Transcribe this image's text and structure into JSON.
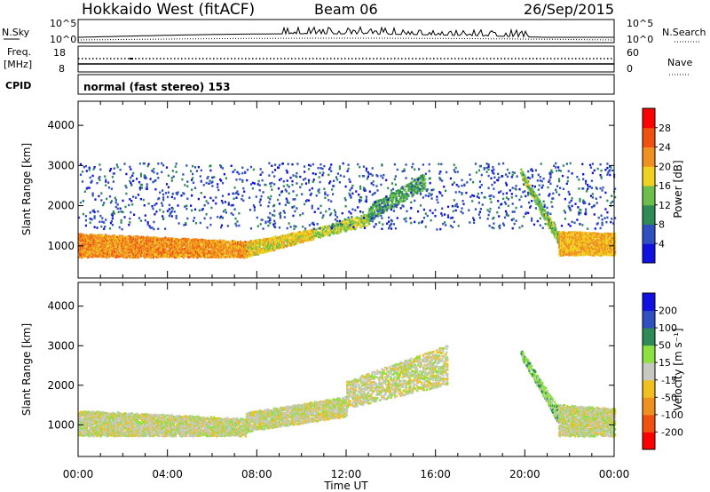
{
  "header": {
    "title": "Hokkaido West (fitACF)",
    "beam": "Beam 06",
    "date": "26/Sep/2015"
  },
  "status_panel": {
    "nsky_label": "N.Sky",
    "nsearch_label": "N.Search",
    "noise_ticks": [
      "10^5",
      "10^0"
    ],
    "freq_label_1": "Freq.",
    "freq_label_2": "[MHz]",
    "freq_ticks": [
      "18",
      "8"
    ],
    "nave_label": "Nave",
    "nave_ticks": [
      "60",
      "0"
    ],
    "cpid_label": "CPID",
    "cpid_text": "normal (fast stereo) 153"
  },
  "chart_data": [
    {
      "type": "heatmap",
      "name": "power-panel",
      "ylabel": "Slant Range [km]",
      "yticks": [
        "1000",
        "2000",
        "3000",
        "4000"
      ],
      "ylim": [
        200,
        4600
      ],
      "xlim_hours": [
        0,
        24
      ],
      "colorbar_label": "Power [dB]",
      "colorbar_ticks": [
        "4",
        "8",
        "12",
        "16",
        "20",
        "24",
        "28"
      ],
      "colorbar_colors": [
        "#1010e0",
        "#3050c0",
        "#2e8b57",
        "#6cbf4a",
        "#f0d020",
        "#f09020",
        "#f05010",
        "#ff0000"
      ],
      "colorbar_range": [
        0,
        32
      ],
      "scatter_bands": [
        {
          "t": [
            0.0,
            7.5
          ],
          "r0": [
            700,
            700
          ],
          "r1": [
            1300,
            1100
          ],
          "level": 22,
          "density": 0.9
        },
        {
          "t": [
            7.5,
            10.5
          ],
          "r0": [
            700,
            1150
          ],
          "r1": [
            1100,
            1400
          ],
          "level": 18,
          "density": 0.85
        },
        {
          "t": [
            10.5,
            13.0
          ],
          "r0": [
            1150,
            1500
          ],
          "r1": [
            1400,
            1800
          ],
          "level": 16,
          "density": 0.7
        },
        {
          "t": [
            13.0,
            15.5
          ],
          "r0": [
            1600,
            2400
          ],
          "r1": [
            2000,
            2800
          ],
          "level": 12,
          "density": 0.55
        },
        {
          "t": [
            0.0,
            24.0
          ],
          "r0": [
            1400,
            1400
          ],
          "r1": [
            3050,
            3050
          ],
          "level": 6,
          "density": 0.05
        },
        {
          "t": [
            19.8,
            21.5
          ],
          "r0": [
            2700,
            1000
          ],
          "r1": [
            2900,
            1300
          ],
          "level": 14,
          "density": 0.8
        },
        {
          "t": [
            21.5,
            24.0
          ],
          "r0": [
            750,
            750
          ],
          "r1": [
            1350,
            1300
          ],
          "level": 20,
          "density": 0.9
        }
      ]
    },
    {
      "type": "heatmap",
      "name": "velocity-panel",
      "ylabel": "Slant Range [km]",
      "xlabel": "Time UT",
      "xticks": [
        "00:00",
        "04:00",
        "08:00",
        "12:00",
        "16:00",
        "20:00",
        "00:00"
      ],
      "yticks": [
        "1000",
        "2000",
        "3000",
        "4000"
      ],
      "ylim": [
        200,
        4600
      ],
      "xlim_hours": [
        0,
        24
      ],
      "colorbar_label": "Velocity [m s⁻¹]",
      "colorbar_ticks": [
        "-200",
        "-100",
        "-50",
        "-15",
        "15",
        "50",
        "100",
        "200"
      ],
      "colorbar_colors": [
        "#ff0000",
        "#f05010",
        "#f09020",
        "#f0c020",
        "#c8c8c0",
        "#8ce040",
        "#2e8b57",
        "#3050c0",
        "#1010e0"
      ],
      "colorbar_range": [
        -250,
        250
      ],
      "scatter_bands": [
        {
          "t": [
            0.0,
            7.5
          ],
          "r0": [
            700,
            700
          ],
          "r1": [
            1350,
            1150
          ],
          "level": 0,
          "density": 0.85
        },
        {
          "t": [
            7.5,
            12.0
          ],
          "r0": [
            800,
            1200
          ],
          "r1": [
            1300,
            1700
          ],
          "level": 0,
          "density": 0.8
        },
        {
          "t": [
            12.0,
            16.5
          ],
          "r0": [
            1400,
            2000
          ],
          "r1": [
            2100,
            3000
          ],
          "level": 0,
          "density": 0.5
        },
        {
          "t": [
            19.8,
            21.5
          ],
          "r0": [
            2700,
            1000
          ],
          "r1": [
            2900,
            1400
          ],
          "level": 60,
          "density": 0.8
        },
        {
          "t": [
            21.5,
            24.0
          ],
          "r0": [
            700,
            700
          ],
          "r1": [
            1500,
            1400
          ],
          "level": 0,
          "density": 0.85
        }
      ]
    }
  ]
}
